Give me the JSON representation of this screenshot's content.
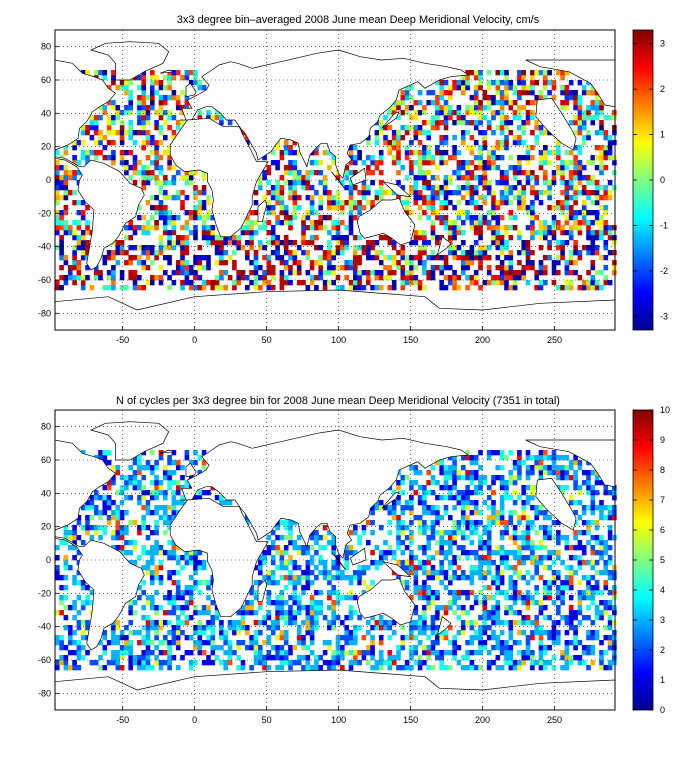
{
  "chart_data": [
    {
      "type": "heatmap",
      "title": "3x3 degree bin–averaged 2008 June mean Deep Meridional Velocity, cm/s",
      "xlabel": "",
      "ylabel": "",
      "xlim": [
        -97,
        292
      ],
      "ylim": [
        -90,
        90
      ],
      "x_ticks": [
        -50,
        0,
        50,
        100,
        150,
        200,
        250
      ],
      "y_ticks": [
        -80,
        -60,
        -40,
        -20,
        0,
        20,
        40,
        60,
        80
      ],
      "grid": true,
      "grid_style": "dotted",
      "bin_size_deg": 3,
      "colorbar": {
        "min": -3.3,
        "max": 3.3,
        "ticks": [
          -3,
          -2,
          -1,
          0,
          1,
          2,
          3
        ],
        "colormap": "jet",
        "placement": "right"
      },
      "basemap": "world coastlines",
      "cell_values": "binned velocity per 3x3 degree ocean cell (values span roughly -3.3 to 3.3 cm/s)"
    },
    {
      "type": "heatmap",
      "title": "N of cycles per 3x3 degree bin for 2008 June mean Deep Meridional Velocity (7351 in total)",
      "xlabel": "",
      "ylabel": "",
      "xlim": [
        -97,
        292
      ],
      "ylim": [
        -90,
        90
      ],
      "x_ticks": [
        -50,
        0,
        50,
        100,
        150,
        200,
        250
      ],
      "y_ticks": [
        -80,
        -60,
        -40,
        -20,
        0,
        20,
        40,
        60,
        80
      ],
      "grid": true,
      "grid_style": "dotted",
      "bin_size_deg": 3,
      "total_cycles": 7351,
      "colorbar": {
        "min": 0,
        "max": 10,
        "ticks": [
          0,
          1,
          2,
          3,
          4,
          5,
          6,
          7,
          8,
          9,
          10
        ],
        "colormap": "jet",
        "placement": "right"
      },
      "basemap": "world coastlines",
      "cell_values": "number of float cycles per 3x3 degree ocean cell (mostly 1-4, occasionally up to 10)"
    }
  ]
}
